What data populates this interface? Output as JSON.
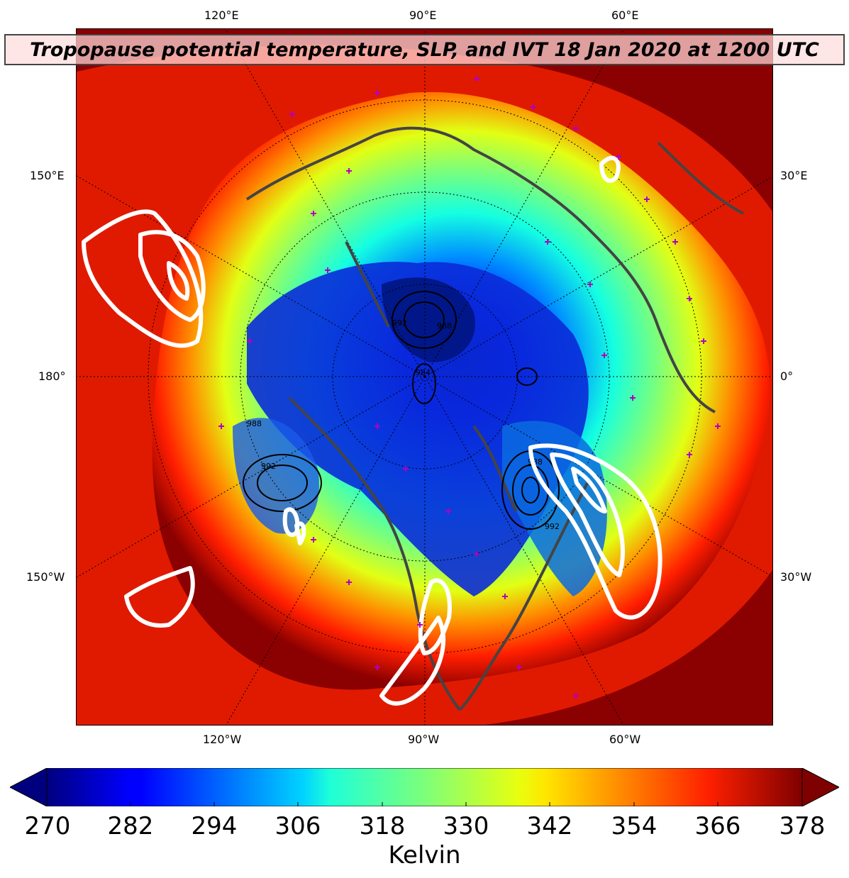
{
  "title": "Tropopause potential temperature, SLP, and IVT 18 Jan 2020 at 1200 UTC",
  "map": {
    "projection": "north-polar-stereographic",
    "field": "tropopause potential temperature",
    "contours": [
      "SLP",
      "IVT"
    ],
    "markers": "observation sites",
    "marker_color": "#b000c0"
  },
  "lon_labels": {
    "top": [
      "120°E",
      "90°E",
      "60°E"
    ],
    "left": [
      "150°E",
      "180°",
      "150°W"
    ],
    "right": [
      "30°E",
      "0°",
      "30°W"
    ],
    "bottom": [
      "120°W",
      "90°W",
      "60°W"
    ]
  },
  "slp_labels": [
    "992",
    "988",
    "988",
    "992",
    "984",
    "988",
    "992"
  ],
  "colorbar": {
    "min": 270,
    "max": 378,
    "ticks": [
      "270",
      "282",
      "294",
      "306",
      "318",
      "330",
      "342",
      "354",
      "366",
      "378"
    ],
    "label": "Kelvin",
    "colormap": "jet",
    "extend": "both"
  }
}
